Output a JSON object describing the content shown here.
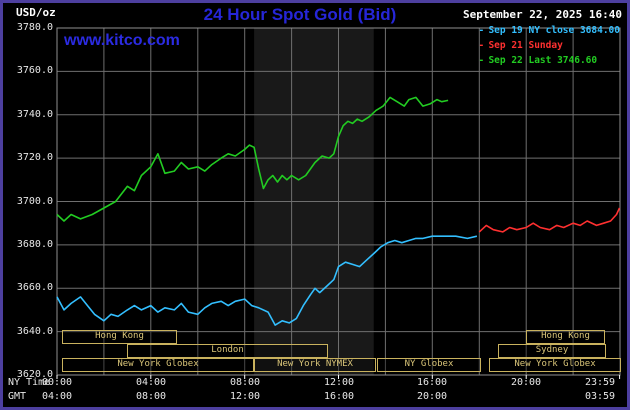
{
  "header": {
    "unit": "USD/oz",
    "title": "24 Hour Spot Gold (Bid)",
    "datetime": "September 22, 2025 16:40",
    "watermark": "www.kitco.com"
  },
  "legend": [
    {
      "label": "Sep 19 NY close 3684.00",
      "color": "#33bfff"
    },
    {
      "label": "Sep 21 Sunday",
      "color": "#ff3030"
    },
    {
      "label": "Sep 22 Last 3746.60",
      "color": "#22cc22"
    }
  ],
  "colors": {
    "background": "#000000",
    "frame_border": "#4d3f9f",
    "grid": "#6f6f6f",
    "plot_border": "#909090",
    "band": "#191919",
    "axis_text": "#e8e8e8",
    "session": "#c9b25e",
    "title": "#2626d8",
    "link": "#2b2be2"
  },
  "axes": {
    "ny_label": "NY Time",
    "gmt_label": "GMT",
    "x_ticks_ny": [
      "00:00",
      "04:00",
      "08:00",
      "12:00",
      "16:00",
      "20:00",
      "23:59"
    ],
    "x_tick_hours_ny": [
      0,
      4,
      8,
      12,
      16,
      20,
      23.983
    ],
    "x_ticks_gmt": [
      "04:00",
      "08:00",
      "12:00",
      "16:00",
      "20:00",
      "03:59"
    ],
    "x_tick_hours_gmt": [
      0,
      4,
      8,
      12,
      16,
      23.983
    ],
    "y_ticks": [
      3780,
      3760,
      3740,
      3720,
      3700,
      3680,
      3660,
      3640,
      3620
    ]
  },
  "sessions": [
    {
      "row": 0,
      "label": "Hong Kong",
      "start": 0.2,
      "end": 5.0
    },
    {
      "row": 0,
      "label": "Hong Kong",
      "start": 20.0,
      "end": 23.3
    },
    {
      "row": 1,
      "label": "London",
      "start": 3.0,
      "end": 11.5
    },
    {
      "row": 1,
      "label": "Sydney",
      "start": 18.8,
      "end": 23.3
    },
    {
      "row": 2,
      "label": "New York Globex",
      "start": 0.2,
      "end": 8.3
    },
    {
      "row": 2,
      "label": "New York NYMEX",
      "start": 8.4,
      "end": 13.5
    },
    {
      "row": 2,
      "label": "NY Globex",
      "start": 13.65,
      "end": 18.0
    },
    {
      "row": 2,
      "label": "New York Globex",
      "start": 18.4,
      "end": 23.95
    }
  ],
  "chart_data": {
    "type": "line",
    "title": "24 Hour Spot Gold (Bid)",
    "xlabel": "NY Time (hours)",
    "ylabel": "USD/oz",
    "xlim": [
      0,
      24
    ],
    "ylim": [
      3620,
      3780
    ],
    "grid": true,
    "legend_position": "top-right",
    "prev_ny_close": 3684.0,
    "last": 3746.6,
    "last_time": "September 22, 2025 16:40",
    "nymex_band_hours": [
      8.4,
      13.5
    ],
    "series": [
      {
        "id": "sep19",
        "name": "Sep 19 NY close 3684.00",
        "color": "#33bfff",
        "points": [
          [
            0,
            3656
          ],
          [
            0.3,
            3650
          ],
          [
            0.6,
            3653
          ],
          [
            1,
            3656
          ],
          [
            1.3,
            3652
          ],
          [
            1.6,
            3648
          ],
          [
            2,
            3645
          ],
          [
            2.3,
            3648
          ],
          [
            2.6,
            3647
          ],
          [
            3,
            3650
          ],
          [
            3.3,
            3652
          ],
          [
            3.6,
            3650
          ],
          [
            4,
            3652
          ],
          [
            4.3,
            3649
          ],
          [
            4.6,
            3651
          ],
          [
            5,
            3650
          ],
          [
            5.3,
            3653
          ],
          [
            5.6,
            3649
          ],
          [
            6,
            3648
          ],
          [
            6.3,
            3651
          ],
          [
            6.6,
            3653
          ],
          [
            7,
            3654
          ],
          [
            7.3,
            3652
          ],
          [
            7.6,
            3654
          ],
          [
            8,
            3655
          ],
          [
            8.3,
            3652
          ],
          [
            8.6,
            3651
          ],
          [
            9,
            3649
          ],
          [
            9.3,
            3643
          ],
          [
            9.6,
            3645
          ],
          [
            9.9,
            3644
          ],
          [
            10.2,
            3646
          ],
          [
            10.5,
            3652
          ],
          [
            10.8,
            3657
          ],
          [
            11,
            3660
          ],
          [
            11.2,
            3658
          ],
          [
            11.5,
            3661
          ],
          [
            11.8,
            3664
          ],
          [
            12,
            3670
          ],
          [
            12.3,
            3672
          ],
          [
            12.6,
            3671
          ],
          [
            12.9,
            3670
          ],
          [
            13.2,
            3673
          ],
          [
            13.5,
            3676
          ],
          [
            13.8,
            3679
          ],
          [
            14.1,
            3681
          ],
          [
            14.4,
            3682
          ],
          [
            14.7,
            3681
          ],
          [
            15,
            3682
          ],
          [
            15.3,
            3683
          ],
          [
            15.6,
            3683
          ],
          [
            16,
            3684
          ],
          [
            16.5,
            3684
          ],
          [
            17,
            3684
          ],
          [
            17.5,
            3683
          ],
          [
            17.9,
            3684
          ]
        ]
      },
      {
        "id": "sep21",
        "name": "Sep 21 Sunday",
        "color": "#ff3030",
        "points": [
          [
            18,
            3686
          ],
          [
            18.3,
            3689
          ],
          [
            18.6,
            3687
          ],
          [
            19,
            3686
          ],
          [
            19.3,
            3688
          ],
          [
            19.6,
            3687
          ],
          [
            20,
            3688
          ],
          [
            20.3,
            3690
          ],
          [
            20.6,
            3688
          ],
          [
            21,
            3687
          ],
          [
            21.3,
            3689
          ],
          [
            21.6,
            3688
          ],
          [
            22,
            3690
          ],
          [
            22.3,
            3689
          ],
          [
            22.6,
            3691
          ],
          [
            23,
            3689
          ],
          [
            23.3,
            3690
          ],
          [
            23.6,
            3691
          ],
          [
            23.85,
            3694
          ],
          [
            23.98,
            3697
          ]
        ]
      },
      {
        "id": "sep22",
        "name": "Sep 22 Last 3746.60",
        "color": "#22cc22",
        "points": [
          [
            0,
            3694
          ],
          [
            0.3,
            3691
          ],
          [
            0.6,
            3694
          ],
          [
            1,
            3692
          ],
          [
            1.5,
            3694
          ],
          [
            2,
            3697
          ],
          [
            2.5,
            3700
          ],
          [
            3,
            3707
          ],
          [
            3.3,
            3705
          ],
          [
            3.6,
            3712
          ],
          [
            4,
            3716
          ],
          [
            4.3,
            3722
          ],
          [
            4.6,
            3713
          ],
          [
            5,
            3714
          ],
          [
            5.3,
            3718
          ],
          [
            5.6,
            3715
          ],
          [
            6,
            3716
          ],
          [
            6.3,
            3714
          ],
          [
            6.6,
            3717
          ],
          [
            7,
            3720
          ],
          [
            7.3,
            3722
          ],
          [
            7.6,
            3721
          ],
          [
            8,
            3724
          ],
          [
            8.2,
            3726
          ],
          [
            8.4,
            3725
          ],
          [
            8.6,
            3715
          ],
          [
            8.8,
            3706
          ],
          [
            9,
            3710
          ],
          [
            9.2,
            3712
          ],
          [
            9.4,
            3709
          ],
          [
            9.6,
            3712
          ],
          [
            9.8,
            3710
          ],
          [
            10,
            3712
          ],
          [
            10.3,
            3710
          ],
          [
            10.6,
            3712
          ],
          [
            11,
            3718
          ],
          [
            11.3,
            3721
          ],
          [
            11.6,
            3720
          ],
          [
            11.8,
            3722
          ],
          [
            12,
            3730
          ],
          [
            12.2,
            3735
          ],
          [
            12.4,
            3737
          ],
          [
            12.6,
            3736
          ],
          [
            12.8,
            3738
          ],
          [
            13,
            3737
          ],
          [
            13.3,
            3739
          ],
          [
            13.6,
            3742
          ],
          [
            13.9,
            3744
          ],
          [
            14.2,
            3748
          ],
          [
            14.5,
            3746
          ],
          [
            14.8,
            3744
          ],
          [
            15,
            3747
          ],
          [
            15.3,
            3748
          ],
          [
            15.6,
            3744
          ],
          [
            15.9,
            3745
          ],
          [
            16.2,
            3747
          ],
          [
            16.4,
            3746
          ],
          [
            16.67,
            3746.6
          ]
        ]
      }
    ]
  }
}
